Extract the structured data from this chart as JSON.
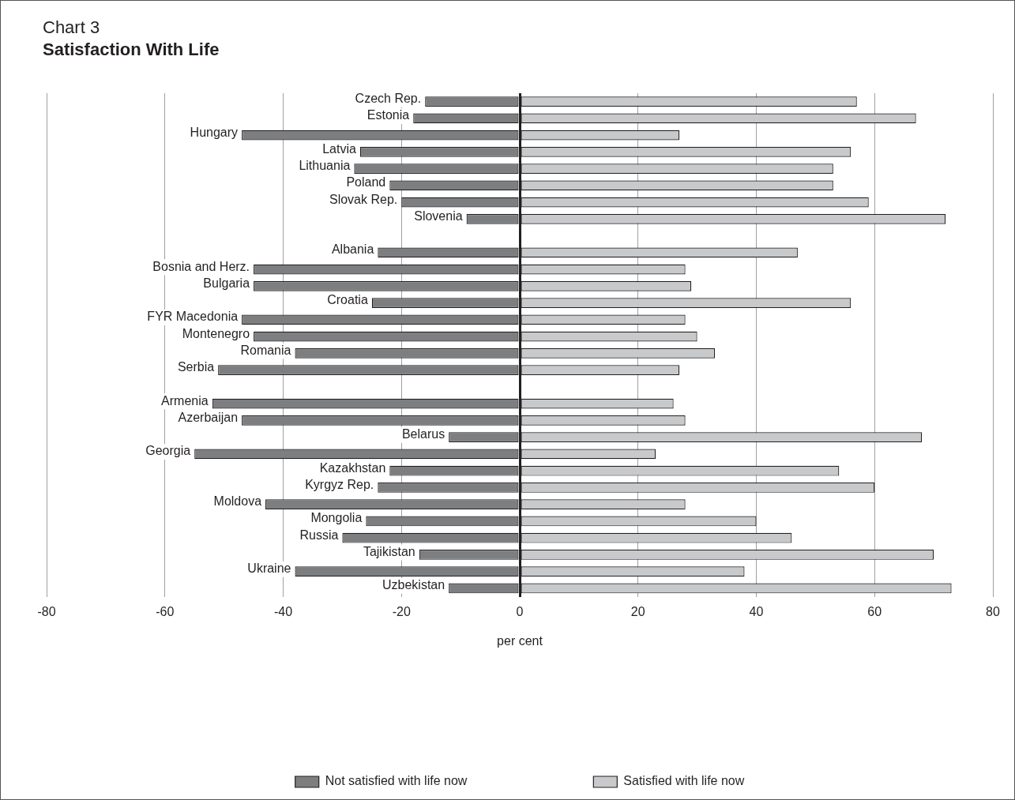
{
  "chart_data": {
    "type": "bar",
    "orientation": "horizontal",
    "stacked": true,
    "subtitle": "Chart 3",
    "title": "Satisfaction With Life",
    "xlabel": "per cent",
    "categories": [
      "Czech Rep.",
      "Estonia",
      "Hungary",
      "Latvia",
      "Lithuania",
      "Poland",
      "Slovak Rep.",
      "Slovenia",
      null,
      "Albania",
      "Bosnia and Herz.",
      "Bulgaria",
      "Croatia",
      "FYR Macedonia",
      "Montenegro",
      "Romania",
      "Serbia",
      null,
      "Armenia",
      "Azerbaijan",
      "Belarus",
      "Georgia",
      "Kazakhstan",
      "Kyrgyz Rep.",
      "Moldova",
      "Mongolia",
      "Russia",
      "Tajikistan",
      "Ukraine",
      "Uzbekistan"
    ],
    "series": [
      {
        "name": "Not satisfied with life now",
        "color": "#7d7e80",
        "values": [
          -16,
          -18,
          -47,
          -27,
          -28,
          -22,
          -20,
          -9,
          null,
          -24,
          -45,
          -45,
          -25,
          -47,
          -45,
          -38,
          -51,
          null,
          -52,
          -47,
          -12,
          -55,
          -22,
          -24,
          -43,
          -26,
          -30,
          -17,
          -38,
          -12
        ]
      },
      {
        "name": "Satisfied with life now",
        "color": "#c8c9cb",
        "values": [
          57,
          67,
          27,
          56,
          53,
          53,
          59,
          72,
          null,
          47,
          28,
          29,
          56,
          28,
          30,
          33,
          27,
          null,
          26,
          28,
          68,
          23,
          54,
          60,
          28,
          40,
          46,
          70,
          38,
          73
        ]
      }
    ],
    "xlim": [
      -80,
      80
    ],
    "xticks": [
      -80,
      -60,
      -40,
      -20,
      0,
      20,
      40,
      60,
      80
    ],
    "grid": "x",
    "legend": "bottom"
  }
}
